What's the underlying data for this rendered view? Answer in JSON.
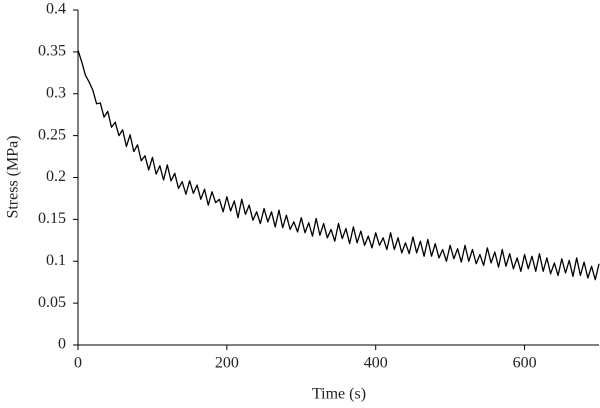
{
  "chart_data": {
    "type": "line",
    "x_label": "Time (s)",
    "y_label": "Stress (MPa)",
    "xlim": [
      0,
      700
    ],
    "xticks": [
      0,
      200,
      400,
      600
    ],
    "ylim": [
      0,
      0.4
    ],
    "yticks": [
      0,
      0.05,
      0.1,
      0.15,
      0.2,
      0.25,
      0.3,
      0.35,
      0.4
    ],
    "grid": false,
    "x": [
      0,
      5,
      10,
      15,
      20,
      25,
      30,
      35,
      40,
      45,
      50,
      55,
      60,
      65,
      70,
      75,
      80,
      85,
      90,
      95,
      100,
      105,
      110,
      115,
      120,
      125,
      130,
      135,
      140,
      145,
      150,
      155,
      160,
      165,
      170,
      175,
      180,
      185,
      190,
      195,
      200,
      205,
      210,
      215,
      220,
      225,
      230,
      235,
      240,
      245,
      250,
      255,
      260,
      265,
      270,
      275,
      280,
      285,
      290,
      295,
      300,
      305,
      310,
      315,
      320,
      325,
      330,
      335,
      340,
      345,
      350,
      355,
      360,
      365,
      370,
      375,
      380,
      385,
      390,
      395,
      400,
      405,
      410,
      415,
      420,
      425,
      430,
      435,
      440,
      445,
      450,
      455,
      460,
      465,
      470,
      475,
      480,
      485,
      490,
      495,
      500,
      505,
      510,
      515,
      520,
      525,
      530,
      535,
      540,
      545,
      550,
      555,
      560,
      565,
      570,
      575,
      580,
      585,
      590,
      595,
      600,
      605,
      610,
      615,
      620,
      625,
      630,
      635,
      640,
      645,
      650,
      655,
      660,
      665,
      670,
      675,
      680,
      685,
      690,
      695,
      700
    ],
    "series": [
      {
        "color": "#000000",
        "values": [
          0.352,
          0.338,
          0.322,
          0.314,
          0.304,
          0.288,
          0.289,
          0.272,
          0.279,
          0.26,
          0.266,
          0.25,
          0.257,
          0.237,
          0.251,
          0.231,
          0.239,
          0.22,
          0.226,
          0.209,
          0.224,
          0.204,
          0.214,
          0.197,
          0.215,
          0.196,
          0.205,
          0.187,
          0.195,
          0.18,
          0.196,
          0.181,
          0.191,
          0.174,
          0.186,
          0.167,
          0.183,
          0.17,
          0.174,
          0.159,
          0.177,
          0.16,
          0.172,
          0.152,
          0.174,
          0.156,
          0.167,
          0.149,
          0.159,
          0.145,
          0.163,
          0.147,
          0.159,
          0.141,
          0.161,
          0.14,
          0.155,
          0.138,
          0.147,
          0.135,
          0.152,
          0.134,
          0.146,
          0.13,
          0.151,
          0.131,
          0.145,
          0.128,
          0.138,
          0.124,
          0.145,
          0.127,
          0.139,
          0.121,
          0.141,
          0.122,
          0.136,
          0.119,
          0.13,
          0.116,
          0.134,
          0.119,
          0.128,
          0.114,
          0.134,
          0.114,
          0.128,
          0.11,
          0.122,
          0.109,
          0.129,
          0.11,
          0.124,
          0.106,
          0.126,
          0.106,
          0.121,
          0.104,
          0.114,
          0.1,
          0.119,
          0.103,
          0.115,
          0.099,
          0.119,
          0.1,
          0.114,
          0.097,
          0.108,
          0.095,
          0.116,
          0.098,
          0.111,
          0.093,
          0.114,
          0.094,
          0.109,
          0.091,
          0.104,
          0.088,
          0.108,
          0.091,
          0.106,
          0.088,
          0.109,
          0.088,
          0.104,
          0.085,
          0.098,
          0.083,
          0.103,
          0.086,
          0.101,
          0.082,
          0.104,
          0.083,
          0.099,
          0.08,
          0.094,
          0.078,
          0.097
        ]
      }
    ]
  }
}
